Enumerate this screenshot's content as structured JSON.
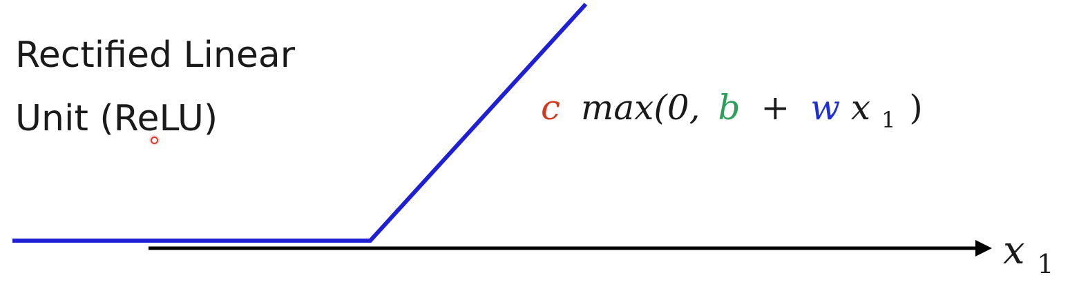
{
  "title": {
    "line1": "Rectified Linear",
    "line2": "Unit (ReLU)"
  },
  "formula": {
    "c": "c",
    "max_open": "max(0,",
    "b": "b",
    "plus": "+",
    "w": "w",
    "x": "x",
    "subscript": "1",
    "close": ")",
    "colors": {
      "c": "#d13a1f",
      "b": "#2e9e5b",
      "w": "#1f2fd6",
      "text": "#1a1a1a"
    }
  },
  "axis": {
    "label_x": "x",
    "label_sub": "1"
  },
  "colors": {
    "relu_line": "#1f1fd6",
    "axis": "#000000"
  }
}
